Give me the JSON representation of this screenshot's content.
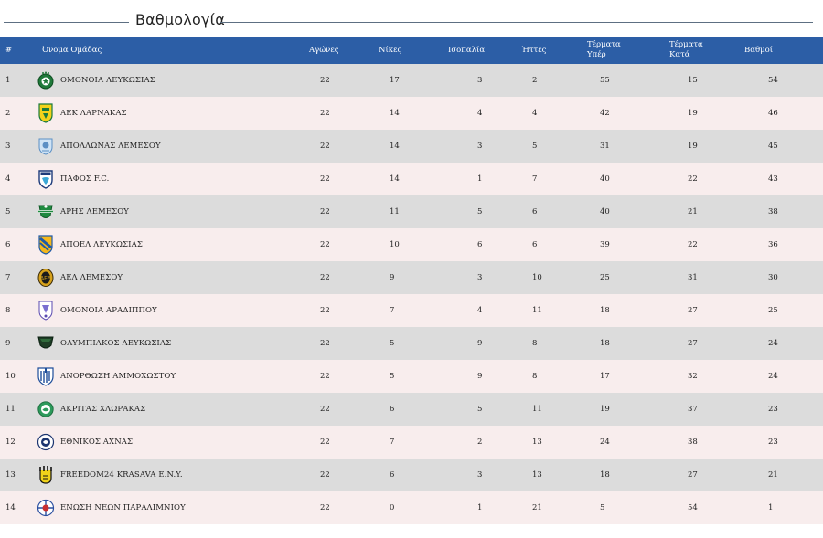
{
  "section_title": "Βαθμολογία",
  "headers": {
    "pos": "#",
    "team": "Όνομα Ομάδας",
    "played": "Αγώνες",
    "wins": "Νίκες",
    "draws": "Ισοπαλία",
    "losses": "Ήττες",
    "goals_for": "Τέρματα Υπέρ",
    "goals_against": "Τέρματα Κατά",
    "points": "Βαθμοί"
  },
  "colors": {
    "header_bg": "#2c5ea6",
    "row_odd": "#dcdcdc",
    "row_even": "#f8eded"
  },
  "rows": [
    {
      "pos": "1",
      "team": "ΟΜΟΝΟΙΑ ΛΕΥΚΩΣΙΑΣ",
      "crest": "omonoia-crest",
      "played": "22",
      "wins": "17",
      "draws": "3",
      "losses": "2",
      "gf": "55",
      "ga": "15",
      "pts": "54"
    },
    {
      "pos": "2",
      "team": "ΑΕΚ ΛΑΡΝΑΚΑΣ",
      "crest": "aek-crest",
      "played": "22",
      "wins": "14",
      "draws": "4",
      "losses": "4",
      "gf": "42",
      "ga": "19",
      "pts": "46"
    },
    {
      "pos": "3",
      "team": "ΑΠΟΛΛΩΝΑΣ ΛΕΜΕΣΟΥ",
      "crest": "apollon-crest",
      "played": "22",
      "wins": "14",
      "draws": "3",
      "losses": "5",
      "gf": "31",
      "ga": "19",
      "pts": "45"
    },
    {
      "pos": "4",
      "team": "ΠΑΦΟΣ F.C.",
      "crest": "pafos-crest",
      "played": "22",
      "wins": "14",
      "draws": "1",
      "losses": "7",
      "gf": "40",
      "ga": "22",
      "pts": "43"
    },
    {
      "pos": "5",
      "team": "ΑΡΗΣ ΛΕΜΕΣΟΥ",
      "crest": "aris-crest",
      "played": "22",
      "wins": "11",
      "draws": "5",
      "losses": "6",
      "gf": "40",
      "ga": "21",
      "pts": "38"
    },
    {
      "pos": "6",
      "team": "ΑΠΟΕΛ ΛΕΥΚΩΣΙΑΣ",
      "crest": "apoel-crest",
      "played": "22",
      "wins": "10",
      "draws": "6",
      "losses": "6",
      "gf": "39",
      "ga": "22",
      "pts": "36"
    },
    {
      "pos": "7",
      "team": "ΑΕΛ ΛΕΜΕΣΟΥ",
      "crest": "ael-crest",
      "played": "22",
      "wins": "9",
      "draws": "3",
      "losses": "10",
      "gf": "25",
      "ga": "31",
      "pts": "30"
    },
    {
      "pos": "8",
      "team": "ΟΜΟΝΟΙΑ ΑΡΑΔΙΠΠΟΥ",
      "crest": "omonoia-aradippou-crest",
      "played": "22",
      "wins": "7",
      "draws": "4",
      "losses": "11",
      "gf": "18",
      "ga": "27",
      "pts": "25"
    },
    {
      "pos": "9",
      "team": "ΟΛΥΜΠΙΑΚΟΣ ΛΕΥΚΩΣΙΑΣ",
      "crest": "olympiakos-crest",
      "played": "22",
      "wins": "5",
      "draws": "9",
      "losses": "8",
      "gf": "18",
      "ga": "27",
      "pts": "24"
    },
    {
      "pos": "10",
      "team": "ΑΝΟΡΘΩΣΗ ΑΜΜΟΧΩΣΤΟΥ",
      "crest": "anorthosis-crest",
      "played": "22",
      "wins": "5",
      "draws": "9",
      "losses": "8",
      "gf": "17",
      "ga": "32",
      "pts": "24"
    },
    {
      "pos": "11",
      "team": "ΑΚΡΙΤΑΣ ΧΛΩΡΑΚΑΣ",
      "crest": "akritas-crest",
      "played": "22",
      "wins": "6",
      "draws": "5",
      "losses": "11",
      "gf": "19",
      "ga": "37",
      "pts": "23"
    },
    {
      "pos": "12",
      "team": "ΕΘΝΙΚΟΣ ΑΧΝΑΣ",
      "crest": "ethnikos-crest",
      "played": "22",
      "wins": "7",
      "draws": "2",
      "losses": "13",
      "gf": "24",
      "ga": "38",
      "pts": "23"
    },
    {
      "pos": "13",
      "team": "FREEDOM24 KRASAVA E.N.Y.",
      "crest": "krasava-crest",
      "played": "22",
      "wins": "6",
      "draws": "3",
      "losses": "13",
      "gf": "18",
      "ga": "27",
      "pts": "21"
    },
    {
      "pos": "14",
      "team": "ΕΝΩΣΗ ΝΕΩΝ ΠΑΡΑΛΙΜΝΙΟΥ",
      "crest": "enp-crest",
      "played": "22",
      "wins": "0",
      "draws": "1",
      "losses": "21",
      "gf": "5",
      "ga": "54",
      "pts": "1"
    }
  ]
}
